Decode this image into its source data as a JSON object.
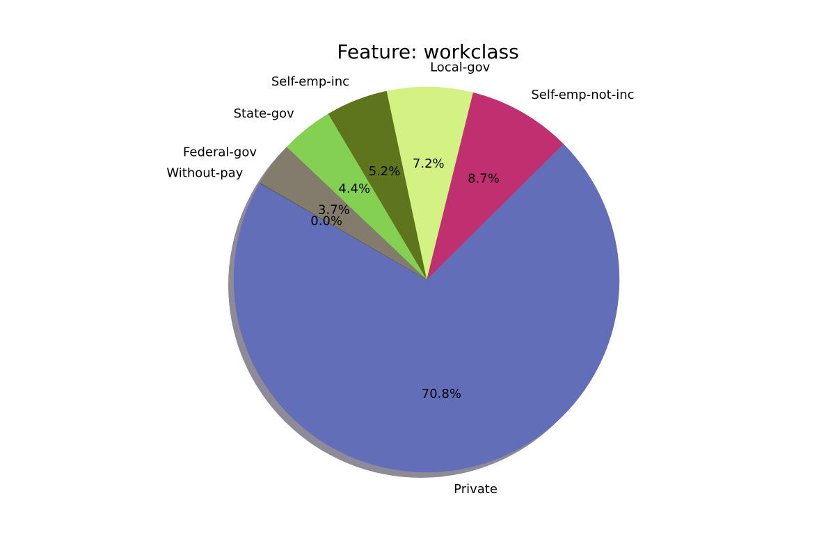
{
  "chart_data": {
    "type": "pie",
    "title": "Feature: workclass",
    "start_angle_deg": 150,
    "direction": "counterclockwise",
    "shadow": true,
    "slices": [
      {
        "label": "Private",
        "value": 70.8,
        "pct_label": "70.8%",
        "color": "#636eb8"
      },
      {
        "label": "Self-emp-not-inc",
        "value": 8.7,
        "pct_label": "8.7%",
        "color": "#c03070"
      },
      {
        "label": "Local-gov",
        "value": 7.2,
        "pct_label": "7.2%",
        "color": "#d3f283"
      },
      {
        "label": "Self-emp-inc",
        "value": 5.2,
        "pct_label": "5.2%",
        "color": "#5e751d"
      },
      {
        "label": "State-gov",
        "value": 4.4,
        "pct_label": "4.4%",
        "color": "#84d053"
      },
      {
        "label": "Federal-gov",
        "value": 3.7,
        "pct_label": "3.7%",
        "color": "#837c6d"
      },
      {
        "label": "Without-pay",
        "value": 0.04,
        "pct_label": "0.0%",
        "color": "#5a5a5a"
      }
    ]
  }
}
